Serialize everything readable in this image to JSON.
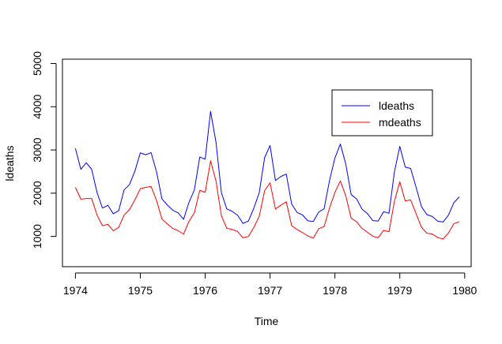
{
  "chart_data": {
    "type": "line",
    "xlabel": "Time",
    "ylabel": "ldeaths",
    "xlim": [
      1973.8,
      1980.1
    ],
    "ylim": [
      300,
      5100
    ],
    "x_ticks": [
      1974,
      1975,
      1976,
      1977,
      1978,
      1979,
      1980
    ],
    "y_ticks": [
      1000,
      2000,
      3000,
      4000,
      5000
    ],
    "x_start": 1974,
    "x_step": 0.0833333,
    "legend_position": "top-right",
    "series": [
      {
        "name": "ldeaths",
        "color": "#0000ff",
        "values": [
          3035,
          2552,
          2704,
          2554,
          2014,
          1655,
          1721,
          1524,
          1596,
          2074,
          2199,
          2512,
          2933,
          2889,
          2938,
          2497,
          1870,
          1726,
          1607,
          1545,
          1396,
          1787,
          2076,
          2837,
          2787,
          3891,
          3179,
          2011,
          1636,
          1580,
          1489,
          1300,
          1356,
          1653,
          2013,
          2823,
          3102,
          2294,
          2385,
          2444,
          1748,
          1554,
          1498,
          1361,
          1346,
          1564,
          1640,
          2293,
          2815,
          3137,
          2679,
          1969,
          1870,
          1633,
          1529,
          1366,
          1357,
          1570,
          1535,
          2491,
          3084,
          2605,
          2573,
          2143,
          1693,
          1504,
          1461,
          1354,
          1333,
          1492,
          1781,
          1915
        ]
      },
      {
        "name": "mdeaths",
        "color": "#ff0000",
        "values": [
          2134,
          1863,
          1877,
          1877,
          1492,
          1249,
          1280,
          1131,
          1209,
          1492,
          1621,
          1846,
          2103,
          2137,
          2153,
          1833,
          1403,
          1288,
          1186,
          1133,
          1053,
          1347,
          1545,
          2066,
          2020,
          2750,
          2283,
          1479,
          1189,
          1160,
          1113,
          970,
          999,
          1208,
          1467,
          2059,
          2240,
          1634,
          1722,
          1801,
          1246,
          1162,
          1087,
          1013,
          959,
          1179,
          1229,
          1655,
          2019,
          2284,
          1942,
          1423,
          1340,
          1187,
          1098,
          1004,
          970,
          1140,
          1110,
          1812,
          2263,
          1820,
          1846,
          1531,
          1215,
          1075,
          1056,
          975,
          940,
          1081,
          1294,
          1341
        ]
      }
    ]
  }
}
